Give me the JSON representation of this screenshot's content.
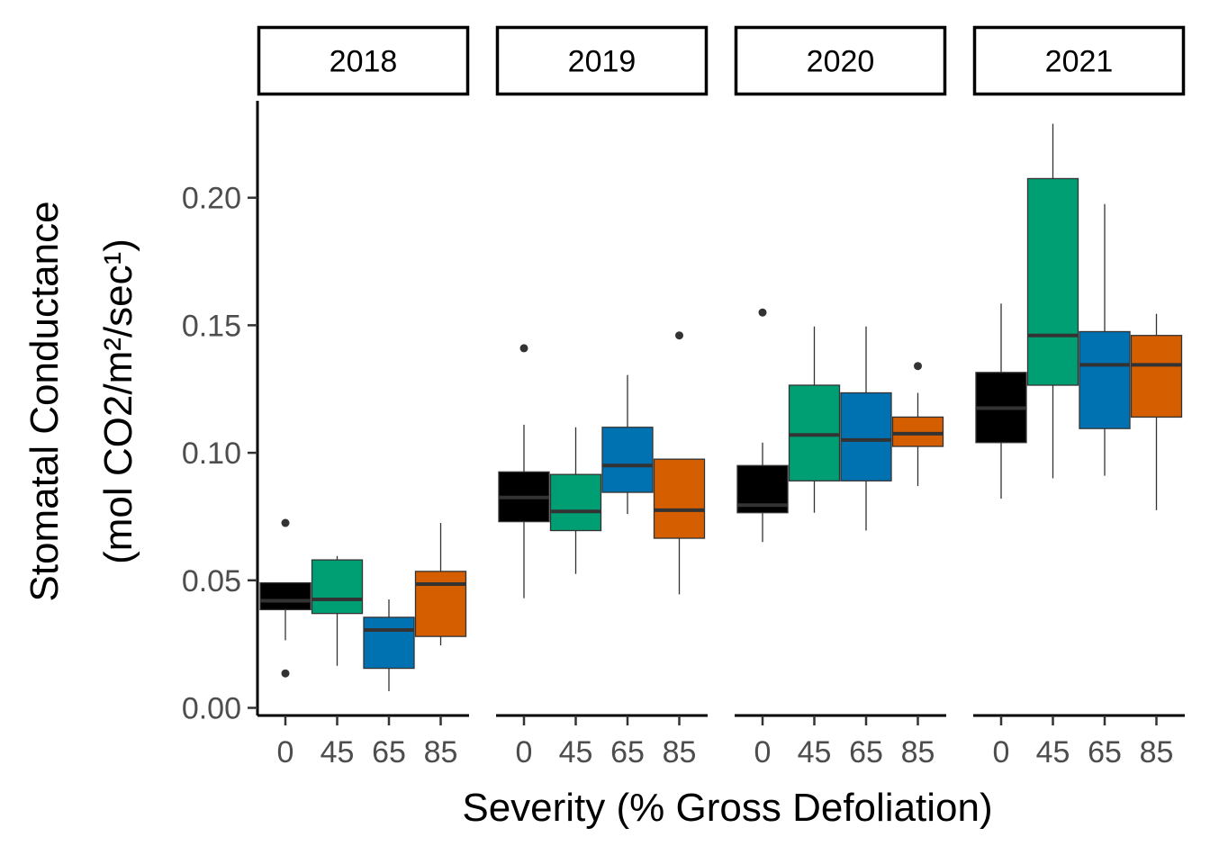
{
  "chart_data": {
    "type": "boxplot",
    "xlabel": "Severity (% Gross Defoliation)",
    "ylabel_line1": "Stomatal Conductance",
    "ylabel_line2": "(mol CO2/m²/sec¹)",
    "ylim": [
      -0.003,
      0.238
    ],
    "y_ticks": [
      0.0,
      0.05,
      0.1,
      0.15,
      0.2
    ],
    "y_tick_labels": [
      "0.00",
      "0.05",
      "0.10",
      "0.15",
      "0.20"
    ],
    "categories": [
      "0",
      "45",
      "65",
      "85"
    ],
    "category_colors": {
      "0": "#000000",
      "45": "#009E73",
      "65": "#0072B2",
      "85": "#D55E00"
    },
    "legend": "none",
    "grid": false,
    "panels": [
      {
        "name": "2018",
        "boxes": [
          {
            "category": "0",
            "q1": 0.0385,
            "median": 0.042,
            "q3": 0.049,
            "whisker_low": 0.0265,
            "whisker_high": 0.049,
            "outliers": [
              0.0725,
              0.0135
            ]
          },
          {
            "category": "45",
            "q1": 0.037,
            "median": 0.0425,
            "q3": 0.058,
            "whisker_low": 0.0165,
            "whisker_high": 0.0595,
            "outliers": []
          },
          {
            "category": "65",
            "q1": 0.0155,
            "median": 0.0305,
            "q3": 0.0355,
            "whisker_low": 0.0065,
            "whisker_high": 0.0425,
            "outliers": []
          },
          {
            "category": "85",
            "q1": 0.028,
            "median": 0.0485,
            "q3": 0.0535,
            "whisker_low": 0.0245,
            "whisker_high": 0.0725,
            "outliers": []
          }
        ]
      },
      {
        "name": "2019",
        "boxes": [
          {
            "category": "0",
            "q1": 0.073,
            "median": 0.0825,
            "q3": 0.0925,
            "whisker_low": 0.043,
            "whisker_high": 0.111,
            "outliers": [
              0.141
            ]
          },
          {
            "category": "45",
            "q1": 0.0695,
            "median": 0.077,
            "q3": 0.0915,
            "whisker_low": 0.0525,
            "whisker_high": 0.11,
            "outliers": []
          },
          {
            "category": "65",
            "q1": 0.0845,
            "median": 0.095,
            "q3": 0.11,
            "whisker_low": 0.076,
            "whisker_high": 0.1305,
            "outliers": []
          },
          {
            "category": "85",
            "q1": 0.0665,
            "median": 0.0775,
            "q3": 0.0975,
            "whisker_low": 0.0445,
            "whisker_high": 0.0975,
            "outliers": [
              0.146
            ]
          }
        ]
      },
      {
        "name": "2020",
        "boxes": [
          {
            "category": "0",
            "q1": 0.0765,
            "median": 0.0795,
            "q3": 0.095,
            "whisker_low": 0.065,
            "whisker_high": 0.104,
            "outliers": [
              0.155
            ]
          },
          {
            "category": "45",
            "q1": 0.089,
            "median": 0.107,
            "q3": 0.1265,
            "whisker_low": 0.0765,
            "whisker_high": 0.1495,
            "outliers": []
          },
          {
            "category": "65",
            "q1": 0.089,
            "median": 0.105,
            "q3": 0.1235,
            "whisker_low": 0.0695,
            "whisker_high": 0.1495,
            "outliers": []
          },
          {
            "category": "85",
            "q1": 0.1025,
            "median": 0.1075,
            "q3": 0.114,
            "whisker_low": 0.087,
            "whisker_high": 0.1235,
            "outliers": [
              0.134
            ]
          }
        ]
      },
      {
        "name": "2021",
        "boxes": [
          {
            "category": "0",
            "q1": 0.104,
            "median": 0.1175,
            "q3": 0.1315,
            "whisker_low": 0.082,
            "whisker_high": 0.1585,
            "outliers": []
          },
          {
            "category": "45",
            "q1": 0.1265,
            "median": 0.146,
            "q3": 0.2075,
            "whisker_low": 0.09,
            "whisker_high": 0.229,
            "outliers": []
          },
          {
            "category": "65",
            "q1": 0.1095,
            "median": 0.1345,
            "q3": 0.1475,
            "whisker_low": 0.091,
            "whisker_high": 0.1975,
            "outliers": []
          },
          {
            "category": "85",
            "q1": 0.114,
            "median": 0.1345,
            "q3": 0.146,
            "whisker_low": 0.0775,
            "whisker_high": 0.1545,
            "outliers": []
          }
        ]
      }
    ]
  }
}
